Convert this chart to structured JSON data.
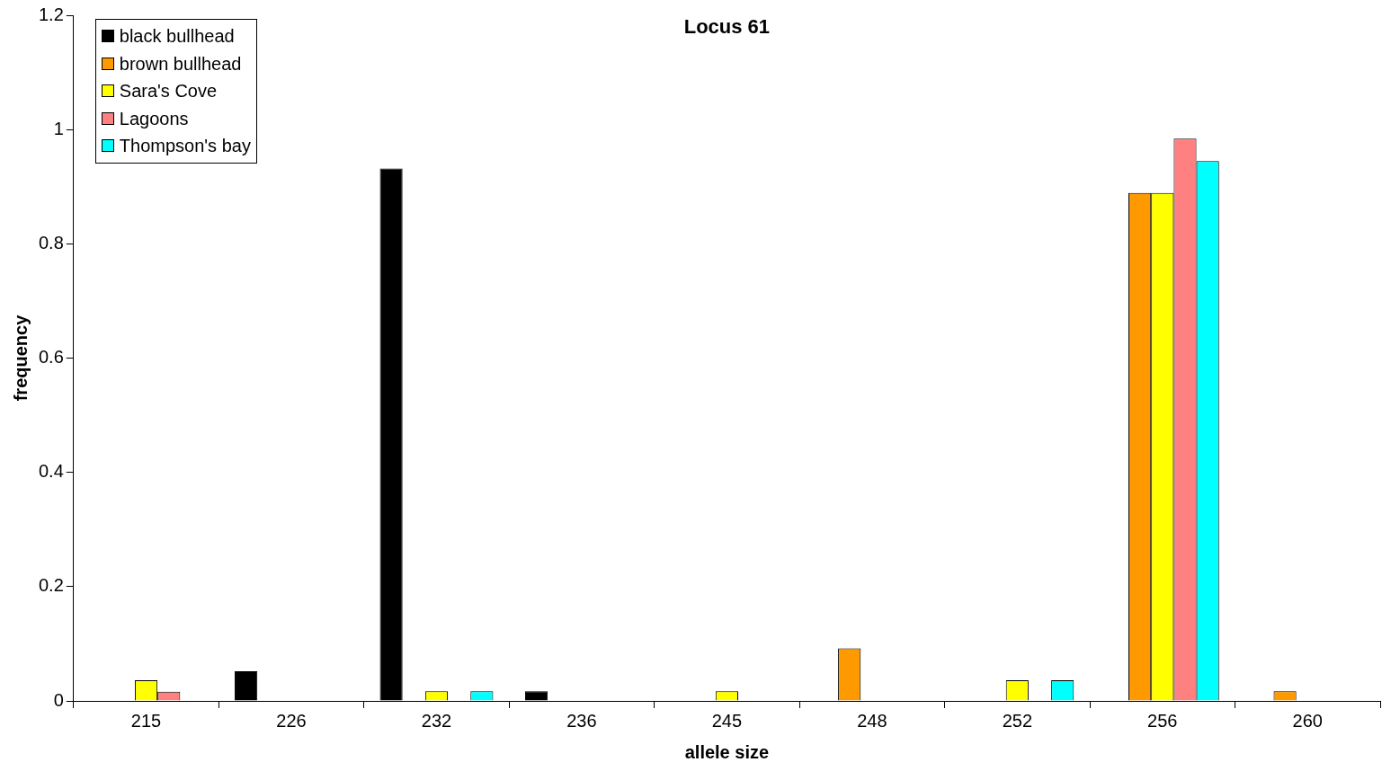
{
  "chart_data": {
    "type": "bar",
    "title": "Locus 61",
    "xlabel": "allele size",
    "ylabel": "frequency",
    "categories": [
      "215",
      "226",
      "232",
      "236",
      "245",
      "248",
      "252",
      "256",
      "260"
    ],
    "series": [
      {
        "name": "black bullhead",
        "color": "#000000",
        "values": [
          0,
          0.052,
          0.932,
          0.017,
          0,
          0,
          0,
          0,
          0
        ]
      },
      {
        "name": "brown bullhead",
        "color": "#ff9900",
        "values": [
          0,
          0,
          0,
          0,
          0,
          0.092,
          0,
          0.889,
          0.017
        ]
      },
      {
        "name": "Sara's Cove",
        "color": "#ffff00",
        "values": [
          0.036,
          0,
          0.017,
          0,
          0.017,
          0,
          0.036,
          0.889,
          0
        ]
      },
      {
        "name": "Lagoons",
        "color": "#ff8080",
        "values": [
          0.016,
          0,
          0,
          0,
          0,
          0,
          0,
          0.984,
          0
        ]
      },
      {
        "name": "Thompson's bay",
        "color": "#00ffff",
        "values": [
          0,
          0,
          0.017,
          0,
          0,
          0,
          0.036,
          0.945,
          0
        ]
      }
    ],
    "ylim": [
      0,
      1.2
    ],
    "yticks": [
      0,
      0.2,
      0.4,
      0.6,
      0.8,
      1,
      1.2
    ],
    "grid": false,
    "legend": "top left"
  }
}
